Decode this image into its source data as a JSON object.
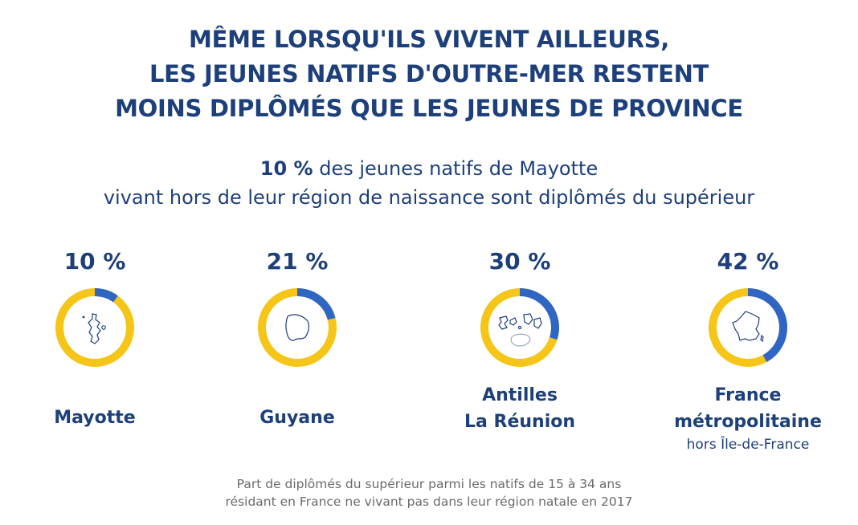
{
  "header": {
    "title_lines": [
      "MÊME LORSQU'ILS VIVENT AILLEURS,",
      "LES JEUNES NATIFS D'OUTRE-MER RESTENT",
      "MOINS DIPLÔMÉS QUE LES JEUNES DE PROVINCE"
    ],
    "subtitle_bold": "10 %",
    "subtitle_rest": " des jeunes natifs de Mayotte",
    "subtitle_line2": "vivant hors de leur région de naissance sont diplômés du supérieur"
  },
  "footnote_lines": [
    "Part de diplômés du supérieur parmi les natifs de 15 à 34 ans",
    "résidant en France ne vivant pas dans leur région natale en 2017"
  ],
  "colors": {
    "title": "#1d3f7a",
    "ring_base": "#f5c518",
    "ring_share": "#2f66c4",
    "note": "#6b6b6b"
  },
  "chart_data": {
    "type": "donut",
    "unit": "%",
    "items": [
      {
        "label_lines": [
          "Mayotte"
        ],
        "sublabel": "",
        "value": 10,
        "display": "10 %",
        "icon": "mayotte-map-icon"
      },
      {
        "label_lines": [
          "Guyane"
        ],
        "sublabel": "",
        "value": 21,
        "display": "21 %",
        "icon": "guyane-map-icon"
      },
      {
        "label_lines": [
          "Antilles",
          "La Réunion"
        ],
        "sublabel": "",
        "value": 30,
        "display": "30 %",
        "icon": "antilles-reunion-map-icon"
      },
      {
        "label_lines": [
          "France",
          "métropolitaine"
        ],
        "sublabel": "hors Île-de-France",
        "value": 42,
        "display": "42 %",
        "icon": "france-map-icon"
      }
    ]
  }
}
